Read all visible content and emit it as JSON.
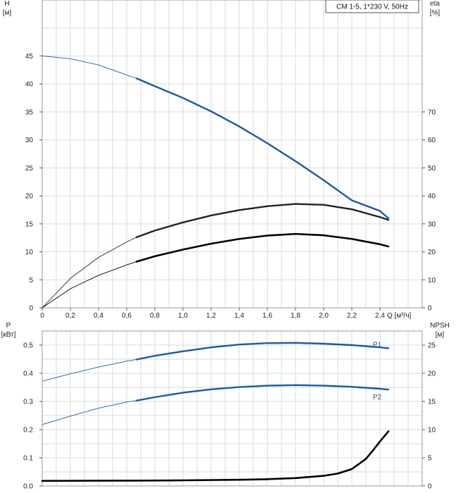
{
  "chart_data": [
    {
      "type": "line",
      "title": "CM 1-5, 1*230 V, 50Hz",
      "x_axis": {
        "label": "Q",
        "unit": "[м³/ч]",
        "range": [
          0,
          2.7
        ],
        "ticks": [
          "0",
          "0,2",
          "0,4",
          "0,6",
          "0,8",
          "1,0",
          "1,2",
          "1,4",
          "1,6",
          "1,8",
          "2,0",
          "2,2",
          "2,4"
        ]
      },
      "y_left": {
        "label": "H",
        "unit": "[м]",
        "range": [
          0,
          55
        ],
        "ticks": [
          "0",
          "5",
          "10",
          "15",
          "20",
          "25",
          "30",
          "35",
          "40",
          "45"
        ]
      },
      "y_right": {
        "label": "eta",
        "unit": "[%]",
        "range": [
          0,
          110
        ],
        "ticks": [
          "0",
          "10",
          "20",
          "30",
          "40",
          "50",
          "60",
          "70"
        ]
      },
      "grid": true,
      "series": [
        {
          "name": "H",
          "axis": "left",
          "color": "#1f5a9a",
          "thin_range": [
            0,
            0.67
          ],
          "x": [
            0,
            0.2,
            0.4,
            0.6,
            0.67,
            0.8,
            1.0,
            1.2,
            1.4,
            1.6,
            1.8,
            2.0,
            2.2,
            2.4,
            2.46
          ],
          "y": [
            45,
            44.5,
            43.4,
            41.6,
            41.0,
            39.6,
            37.5,
            35.1,
            32.4,
            29.4,
            26.2,
            22.8,
            19.2,
            17.3,
            16.0
          ]
        },
        {
          "name": "eta (upper)",
          "axis": "right",
          "color": "#222222",
          "thin_range": [
            0,
            0.67
          ],
          "x": [
            0,
            0.2,
            0.4,
            0.6,
            0.67,
            0.8,
            1.0,
            1.2,
            1.4,
            1.6,
            1.8,
            2.0,
            2.2,
            2.4,
            2.46
          ],
          "y": [
            0,
            10.5,
            18,
            23.5,
            25.2,
            27.6,
            30.5,
            33,
            34.9,
            36.3,
            37.1,
            36.8,
            35.2,
            32.4,
            31.4
          ]
        },
        {
          "name": "eta (lower)",
          "axis": "right",
          "color": "#000000",
          "thin_range": [
            0,
            0.67
          ],
          "x": [
            0,
            0.2,
            0.4,
            0.6,
            0.67,
            0.8,
            1.0,
            1.2,
            1.4,
            1.6,
            1.8,
            2.0,
            2.2,
            2.4,
            2.46
          ],
          "y": [
            0,
            6.8,
            11.6,
            15.3,
            16.5,
            18.4,
            20.8,
            22.9,
            24.6,
            25.8,
            26.4,
            25.9,
            24.6,
            22.7,
            21.9
          ]
        }
      ]
    },
    {
      "type": "line",
      "x_axis": {
        "range": [
          0,
          2.7
        ]
      },
      "y_left": {
        "label": "P",
        "unit": "[кВт]",
        "range": [
          0,
          0.55
        ],
        "ticks": [
          "0.0",
          "0.1",
          "0.2",
          "0.3",
          "0.4",
          "0.5"
        ]
      },
      "y_right": {
        "label": "NPSH",
        "unit": "[м]",
        "range": [
          0,
          27.5
        ],
        "ticks": [
          "0",
          "5",
          "10",
          "15",
          "20",
          "25"
        ]
      },
      "grid": true,
      "series": [
        {
          "name": "P1",
          "axis": "left",
          "color": "#1f5a9a",
          "thin_range": [
            0,
            0.67
          ],
          "x": [
            0,
            0.2,
            0.4,
            0.6,
            0.67,
            0.8,
            1.0,
            1.2,
            1.4,
            1.6,
            1.8,
            2.0,
            2.2,
            2.4,
            2.46
          ],
          "y": [
            0.372,
            0.398,
            0.422,
            0.443,
            0.449,
            0.462,
            0.478,
            0.492,
            0.502,
            0.507,
            0.508,
            0.505,
            0.5,
            0.492,
            0.489
          ]
        },
        {
          "name": "P2",
          "axis": "left",
          "color": "#1f5a9a",
          "thin_range": [
            0,
            0.67
          ],
          "x": [
            0,
            0.2,
            0.4,
            0.6,
            0.67,
            0.8,
            1.0,
            1.2,
            1.4,
            1.6,
            1.8,
            2.0,
            2.2,
            2.4,
            2.46
          ],
          "y": [
            0.218,
            0.248,
            0.276,
            0.298,
            0.303,
            0.315,
            0.331,
            0.343,
            0.351,
            0.356,
            0.358,
            0.356,
            0.352,
            0.345,
            0.342
          ]
        },
        {
          "name": "NPSH",
          "axis": "right",
          "color": "#000000",
          "thin_range": [
            0,
            0
          ],
          "x": [
            0,
            0.67,
            1.0,
            1.4,
            1.6,
            1.8,
            2.0,
            2.1,
            2.2,
            2.3,
            2.35,
            2.4,
            2.46
          ],
          "y": [
            0.9,
            0.95,
            1.0,
            1.1,
            1.2,
            1.4,
            1.8,
            2.2,
            3.0,
            4.8,
            6.3,
            7.9,
            9.7
          ]
        }
      ]
    }
  ]
}
